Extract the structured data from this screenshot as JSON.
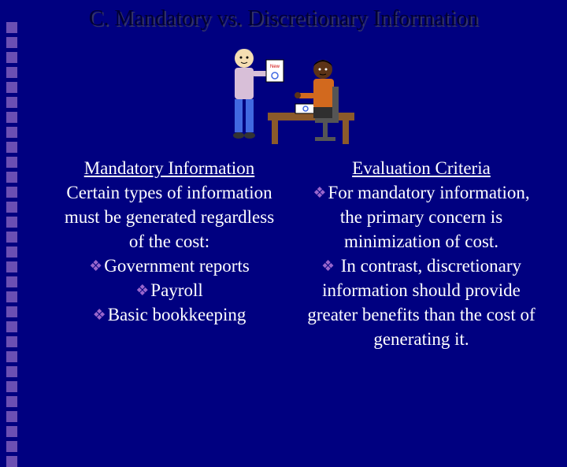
{
  "title": "C. Mandatory vs. Discretionary Information",
  "sidebar": {
    "square_count": 30,
    "square_color": "#6b4fb3"
  },
  "left": {
    "heading": "Mandatory Information",
    "intro": "Certain types of information must be generated regardless of the cost:",
    "bullets": [
      "Government reports",
      "Payroll",
      "Basic bookkeeping"
    ]
  },
  "right": {
    "heading": "Evaluation Criteria",
    "bullets": [
      "For mandatory information, the primary concern is minimization of cost.",
      " In contrast, discretionary information should provide greater benefits than the cost of generating it."
    ]
  },
  "clipart": {
    "bg": "#000080",
    "desk_color": "#8b5a2b",
    "person1_shirt": "#d8bfd8",
    "person1_pants": "#4169e1",
    "person1_skin": "#f5deb3",
    "person2_shirt": "#d2691e",
    "person2_skin": "#5c3317",
    "paper": "#ffffff"
  }
}
